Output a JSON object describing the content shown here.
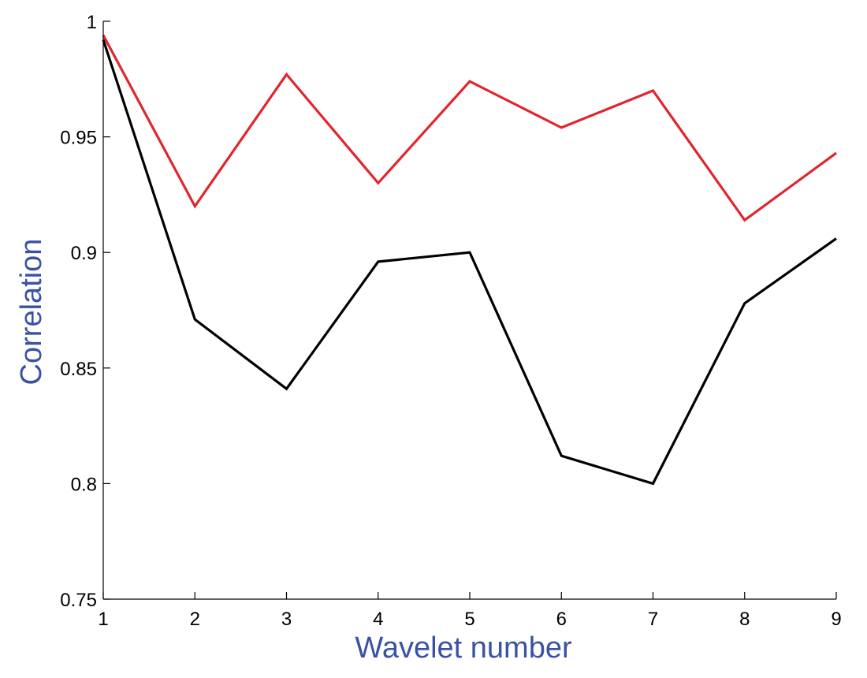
{
  "chart_data": {
    "type": "line",
    "title": "",
    "xlabel": "Wavelet number",
    "ylabel": "Correlation",
    "xlim": [
      1,
      9
    ],
    "ylim": [
      0.75,
      1.0
    ],
    "x": [
      1,
      2,
      3,
      4,
      5,
      6,
      7,
      8,
      9
    ],
    "x_ticks": [
      "1",
      "2",
      "3",
      "4",
      "5",
      "6",
      "7",
      "8",
      "9"
    ],
    "y_ticks": [
      "0.75",
      "0.8",
      "0.85",
      "0.9",
      "0.95",
      "1"
    ],
    "grid": false,
    "legend": "none",
    "series": [
      {
        "color": "#e0262e",
        "values": [
          0.994,
          0.92,
          0.977,
          0.93,
          0.974,
          0.954,
          0.97,
          0.914,
          0.943
        ]
      },
      {
        "color": "#000000",
        "values": [
          0.992,
          0.871,
          0.841,
          0.896,
          0.9,
          0.812,
          0.8,
          0.878,
          0.906
        ]
      }
    ]
  }
}
